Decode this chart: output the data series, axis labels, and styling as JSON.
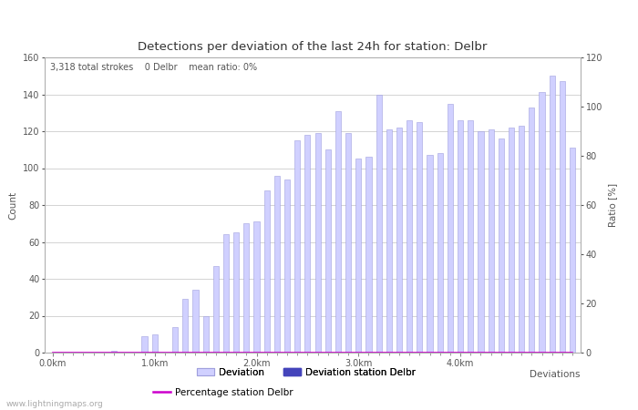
{
  "title": "Detections per deviation of the last 24h for station: Delbr",
  "subtitle": "3,318 total strokes    0 Delbr    mean ratio: 0%",
  "xlabel": "Deviations",
  "ylabel_left": "Count",
  "ylabel_right": "Ratio [%]",
  "watermark": "www.lightningmaps.org",
  "bar_values": [
    0,
    0,
    0,
    0,
    0,
    0,
    1,
    0,
    0,
    9,
    10,
    0,
    14,
    29,
    34,
    20,
    47,
    64,
    65,
    70,
    71,
    88,
    96,
    94,
    115,
    118,
    119,
    110,
    131,
    119,
    105,
    106,
    140,
    121,
    122,
    126,
    125,
    107,
    108,
    135,
    126,
    126,
    120,
    121,
    116,
    122,
    123,
    133,
    141,
    150,
    147,
    111
  ],
  "bar_color": "#d0d0ff",
  "bar_edge_color": "#a0a0dd",
  "station_bar_values": [
    0,
    0,
    0,
    0,
    0,
    0,
    0,
    0,
    0,
    0,
    0,
    0,
    0,
    0,
    0,
    0,
    0,
    0,
    0,
    0,
    0,
    0,
    0,
    0,
    0,
    0,
    0,
    0,
    0,
    0,
    0,
    0,
    0,
    0,
    0,
    0,
    0,
    0,
    0,
    0,
    0,
    0,
    0,
    0,
    0,
    0,
    0,
    0,
    0,
    0,
    0,
    0
  ],
  "station_bar_color": "#4444bb",
  "percentage_line": [
    0,
    0,
    0,
    0,
    0,
    0,
    0,
    0,
    0,
    0,
    0,
    0,
    0,
    0,
    0,
    0,
    0,
    0,
    0,
    0,
    0,
    0,
    0,
    0,
    0,
    0,
    0,
    0,
    0,
    0,
    0,
    0,
    0,
    0,
    0,
    0,
    0,
    0,
    0,
    0,
    0,
    0,
    0,
    0,
    0,
    0,
    0,
    0,
    0,
    0,
    0,
    0
  ],
  "percentage_color": "#cc00cc",
  "x_tick_labels": [
    "0.0km",
    "1.0km",
    "2.0km",
    "3.0km",
    "4.0km"
  ],
  "x_tick_positions": [
    0,
    10,
    20,
    30,
    40
  ],
  "ylim_left": [
    0,
    160
  ],
  "ylim_right": [
    0,
    120
  ],
  "yticks_left": [
    0,
    20,
    40,
    60,
    80,
    100,
    120,
    140,
    160
  ],
  "yticks_right": [
    0,
    20,
    40,
    60,
    80,
    100,
    120
  ],
  "grid_color": "#cccccc",
  "background_color": "#ffffff",
  "legend_deviation_label": "Deviation",
  "legend_station_label": "Deviation station Delbr",
  "legend_percentage_label": "Percentage station Delbr",
  "title_fontsize": 9.5,
  "axis_fontsize": 7.5,
  "tick_fontsize": 7,
  "subtitle_fontsize": 7
}
